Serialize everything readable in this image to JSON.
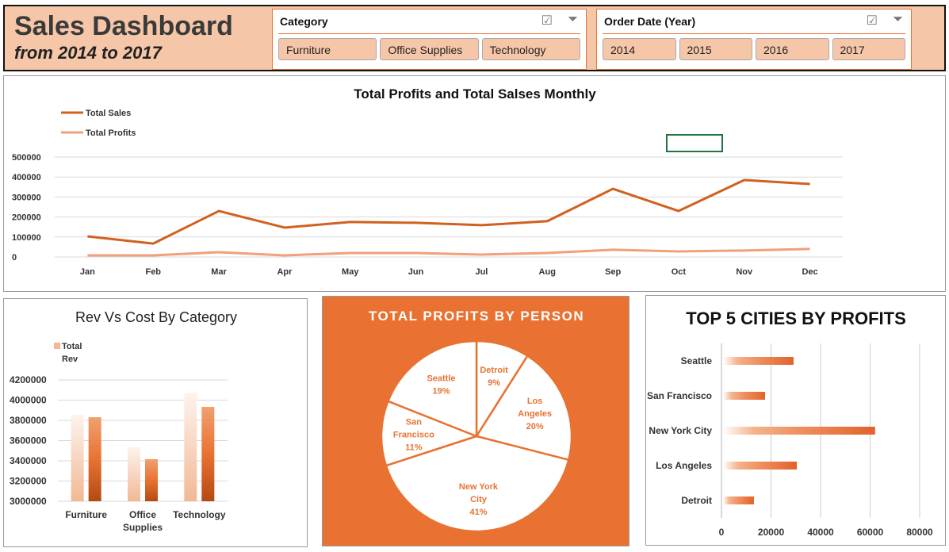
{
  "header": {
    "title": "Sales Dashboard",
    "subtitle": "from 2014 to 2017"
  },
  "slicers": [
    {
      "title": "Category",
      "items": [
        "Furniture",
        "Office Supplies",
        "Technology"
      ],
      "icons": [
        "multi-select-icon",
        "clear-filter-icon"
      ]
    },
    {
      "title": "Order Date (Year)",
      "items": [
        "2014",
        "2015",
        "2016",
        "2017"
      ],
      "icons": [
        "multi-select-icon",
        "clear-filter-icon"
      ]
    }
  ],
  "colors": {
    "accent": "#e97232",
    "header_bg": "#f5c6a8",
    "sales": "#d2601e",
    "profits": "#f0a07a"
  },
  "chart_data": [
    {
      "type": "line",
      "title": "Total Profits and Total Salses Monthly",
      "legend": "top-left",
      "grid": true,
      "categories": [
        "Jan",
        "Feb",
        "Mar",
        "Apr",
        "May",
        "Jun",
        "Jul",
        "Aug",
        "Sep",
        "Oct",
        "Nov",
        "Dec"
      ],
      "ylim": [
        0,
        500000
      ],
      "yticks": [
        "0",
        "100000",
        "200000",
        "300000",
        "400000",
        "500000"
      ],
      "series": [
        {
          "name": "Total Sales",
          "values": [
            103000,
            67000,
            230000,
            147000,
            175000,
            171000,
            159000,
            179000,
            341000,
            230000,
            385000,
            365000
          ]
        },
        {
          "name": "Total Profits",
          "values": [
            8000,
            8000,
            24000,
            8000,
            20000,
            20000,
            12000,
            20000,
            36000,
            28000,
            32000,
            40000
          ]
        }
      ]
    },
    {
      "type": "bar",
      "title": "Rev Vs Cost By Category",
      "legend": "top-left",
      "grid": true,
      "categories": [
        "Furniture",
        "Office Supplies",
        "Technology"
      ],
      "ylim": [
        3000000,
        4200000
      ],
      "yticks": [
        "3000000",
        "3200000",
        "3400000",
        "3600000",
        "3800000",
        "4000000",
        "4200000"
      ],
      "series": [
        {
          "name": "Total Rev",
          "values": [
            3855000,
            3533000,
            4074000
          ]
        },
        {
          "values": [
            3831000,
            3416000,
            3933000
          ]
        }
      ]
    },
    {
      "type": "pie",
      "title": "TOTAL PROFITS BY PERSON",
      "labels": [
        "Detroit",
        "Los Angeles",
        "New York City",
        "San Francisco",
        "Seattle"
      ],
      "values": [
        9,
        20,
        41,
        11,
        19
      ],
      "value_labels": [
        "9%",
        "20%",
        "41%",
        "11%",
        "19%"
      ]
    },
    {
      "type": "bar",
      "orientation": "horizontal",
      "title": "TOP 5 CITIES BY PROFITS",
      "grid": true,
      "categories": [
        "Seattle",
        "San Francisco",
        "New York City",
        "Los Angeles",
        "Detroit"
      ],
      "values": [
        29100,
        17600,
        62000,
        30400,
        13100
      ],
      "xlim": [
        0,
        80000
      ],
      "xticks": [
        "0",
        "20000",
        "40000",
        "60000",
        "80000"
      ]
    }
  ]
}
